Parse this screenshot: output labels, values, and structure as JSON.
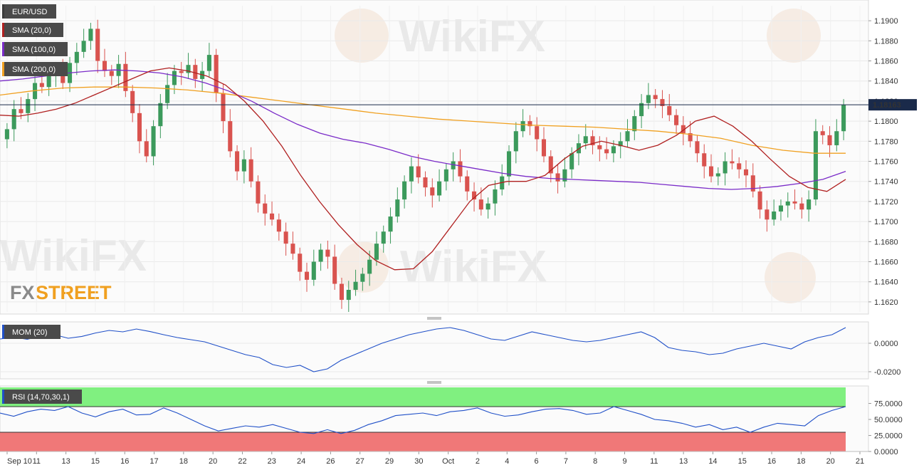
{
  "instrument": "EUR/USD",
  "legends": {
    "sma20": "SMA (20,0)",
    "sma100": "SMA (100,0)",
    "sma200": "SMA (200,0)",
    "mom": "MOM (20)",
    "rsi": "RSI (14,70,30,1)"
  },
  "brand": {
    "fx": "FX",
    "street": "STREET"
  },
  "watermark": "WikiFX",
  "colors": {
    "up": "#3c9a5c",
    "down": "#d9534f",
    "sma20": "#b02020",
    "sma100": "#7a2bc8",
    "sma200": "#f0a020",
    "indicator_line": "#2050c8",
    "rsi_overbought_zone": "#80f080",
    "rsi_oversold_zone": "#f07878",
    "current_price_tag": "#1a2a4a"
  },
  "current_price": "1.18163",
  "chart_data": [
    {
      "type": "candlestick",
      "ylim": [
        1.161,
        1.1915
      ],
      "yticks": [
        "1.1900",
        "1.1880",
        "1.1860",
        "1.1840",
        "1.1820",
        "1.1800",
        "1.1780",
        "1.1760",
        "1.1740",
        "1.1720",
        "1.1700",
        "1.1680",
        "1.1660",
        "1.1640",
        "1.1620"
      ],
      "xticks": [
        "Sep 10",
        "11",
        "13",
        "15",
        "16",
        "17",
        "18",
        "20",
        "22",
        "23",
        "24",
        "26",
        "27",
        "29",
        "30",
        "Oct",
        "2",
        "4",
        "6",
        "7",
        "8",
        "9",
        "11",
        "13",
        "14",
        "15",
        "16",
        "18",
        "20",
        "21"
      ],
      "current_price": 1.18163,
      "closes": [
        1.1792,
        1.1812,
        1.1808,
        1.1822,
        1.1838,
        1.1834,
        1.1846,
        1.185,
        1.1838,
        1.1858,
        1.1869,
        1.188,
        1.1892,
        1.186,
        1.185,
        1.1845,
        1.1857,
        1.183,
        1.1808,
        1.178,
        1.1765,
        1.1795,
        1.1818,
        1.1836,
        1.185,
        1.1848,
        1.1856,
        1.1842,
        1.185,
        1.1866,
        1.1828,
        1.18,
        1.177,
        1.175,
        1.1762,
        1.174,
        1.1718,
        1.1708,
        1.1702,
        1.169,
        1.1678,
        1.1668,
        1.165,
        1.1642,
        1.166,
        1.1672,
        1.1665,
        1.1638,
        1.1622,
        1.1632,
        1.164,
        1.1648,
        1.1662,
        1.1678,
        1.169,
        1.1705,
        1.1722,
        1.174,
        1.1755,
        1.1744,
        1.1734,
        1.1726,
        1.174,
        1.1752,
        1.176,
        1.1745,
        1.173,
        1.1722,
        1.1712,
        1.1718,
        1.1732,
        1.1745,
        1.177,
        1.179,
        1.18,
        1.1795,
        1.1782,
        1.1765,
        1.1748,
        1.174,
        1.1752,
        1.1768,
        1.1778,
        1.1785,
        1.1776,
        1.1772,
        1.1768,
        1.1775,
        1.178,
        1.179,
        1.1805,
        1.1818,
        1.1826,
        1.1822,
        1.1815,
        1.1806,
        1.1796,
        1.1788,
        1.178,
        1.1768,
        1.1755,
        1.1745,
        1.1748,
        1.176,
        1.1758,
        1.1752,
        1.1746,
        1.173,
        1.1712,
        1.1702,
        1.171,
        1.1716,
        1.172,
        1.1718,
        1.1712,
        1.1722,
        1.179,
        1.1786,
        1.1776,
        1.179,
        1.1816
      ],
      "sma20": [
        1.1806,
        1.1805,
        1.1808,
        1.1812,
        1.1818,
        1.1826,
        1.1834,
        1.1842,
        1.185,
        1.1853,
        1.185,
        1.1845,
        1.1836,
        1.182,
        1.18,
        1.1775,
        1.1746,
        1.172,
        1.1697,
        1.1677,
        1.1661,
        1.1652,
        1.1653,
        1.167,
        1.1695,
        1.172,
        1.1736,
        1.174,
        1.174,
        1.1746,
        1.1762,
        1.1775,
        1.178,
        1.1776,
        1.1771,
        1.1776,
        1.1786,
        1.18,
        1.1805,
        1.1795,
        1.178,
        1.1762,
        1.1745,
        1.1734,
        1.173,
        1.1742
      ],
      "sma100": [
        1.184,
        1.1842,
        1.1845,
        1.1848,
        1.185,
        1.1851,
        1.185,
        1.1848,
        1.1844,
        1.1838,
        1.183,
        1.182,
        1.1808,
        1.1797,
        1.1788,
        1.1782,
        1.1778,
        1.1772,
        1.1765,
        1.176,
        1.1756,
        1.1752,
        1.1748,
        1.1745,
        1.1743,
        1.1742,
        1.1741,
        1.174,
        1.1739,
        1.1737,
        1.1735,
        1.1733,
        1.1732,
        1.1733,
        1.1735,
        1.1738,
        1.1742,
        1.175
      ],
      "sma200": [
        1.1826,
        1.183,
        1.1833,
        1.1834,
        1.1834,
        1.1833,
        1.1831,
        1.1828,
        1.1824,
        1.182,
        1.1816,
        1.1812,
        1.1808,
        1.1805,
        1.1802,
        1.18,
        1.1798,
        1.1796,
        1.1795,
        1.1794,
        1.1792,
        1.179,
        1.1787,
        1.1783,
        1.1776,
        1.1771,
        1.1768,
        1.1768
      ]
    },
    {
      "type": "line",
      "name": "MOM (20)",
      "ylim": [
        -0.023,
        0.013
      ],
      "yticks": [
        "0.0000",
        "-0.0200"
      ],
      "values": [
        0.003,
        0.0042,
        0.0028,
        0.005,
        0.006,
        0.0035,
        0.0048,
        0.0072,
        0.009,
        0.008,
        0.01,
        0.0082,
        0.006,
        0.004,
        0.0025,
        0.001,
        -0.002,
        -0.005,
        -0.008,
        -0.01,
        -0.015,
        -0.017,
        -0.0155,
        -0.02,
        -0.018,
        -0.012,
        -0.008,
        -0.004,
        0.0,
        0.003,
        0.006,
        0.008,
        0.01,
        0.011,
        0.009,
        0.006,
        0.003,
        0.002,
        0.005,
        0.008,
        0.006,
        0.004,
        0.002,
        0.001,
        0.002,
        0.004,
        0.006,
        0.008,
        0.004,
        -0.003,
        -0.005,
        -0.006,
        -0.008,
        -0.007,
        -0.004,
        -0.002,
        0.0,
        -0.002,
        -0.004,
        0.001,
        0.004,
        0.006,
        0.011
      ]
    },
    {
      "type": "line",
      "name": "RSI (14,70,30,1)",
      "ylim": [
        0,
        100
      ],
      "yticks": [
        "75.0000",
        "50.0000",
        "25.0000",
        "0.0000"
      ],
      "overbought": 70,
      "oversold": 30,
      "values": [
        60,
        55,
        62,
        66,
        64,
        70,
        60,
        54,
        62,
        66,
        57,
        58,
        68,
        60,
        50,
        40,
        32,
        36,
        40,
        38,
        42,
        36,
        30,
        28,
        34,
        28,
        33,
        42,
        48,
        56,
        58,
        60,
        56,
        62,
        64,
        68,
        60,
        55,
        57,
        62,
        66,
        67,
        64,
        58,
        60,
        70,
        64,
        58,
        50,
        48,
        44,
        38,
        42,
        34,
        38,
        30,
        38,
        44,
        42,
        40,
        56,
        64,
        70
      ]
    }
  ]
}
